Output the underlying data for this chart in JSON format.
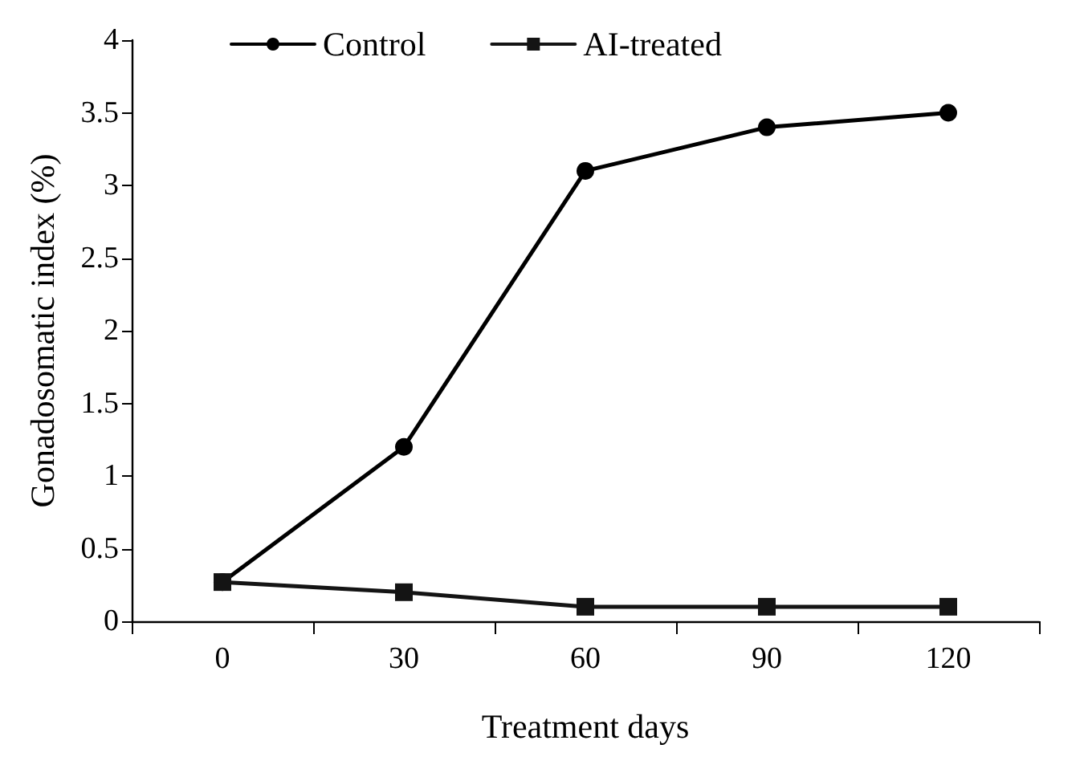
{
  "chart_data": {
    "type": "line",
    "xlabel": "Treatment days",
    "ylabel": "Gonadosomatic index (%)",
    "categories": [
      "0",
      "30",
      "60",
      "90",
      "120"
    ],
    "series": [
      {
        "name": "Control",
        "color": "#000000",
        "marker": "circle",
        "values": [
          0.27,
          1.2,
          3.1,
          3.4,
          3.5
        ]
      },
      {
        "name": "AI-treated",
        "color": "#141414",
        "marker": "square",
        "values": [
          0.27,
          0.2,
          0.1,
          0.1,
          0.1
        ]
      }
    ],
    "ylim": [
      0,
      4
    ],
    "yticks": [
      0,
      0.5,
      1,
      1.5,
      2,
      2.5,
      3,
      3.5,
      4
    ],
    "grid": false,
    "legend": "top",
    "line_style": "solid"
  }
}
